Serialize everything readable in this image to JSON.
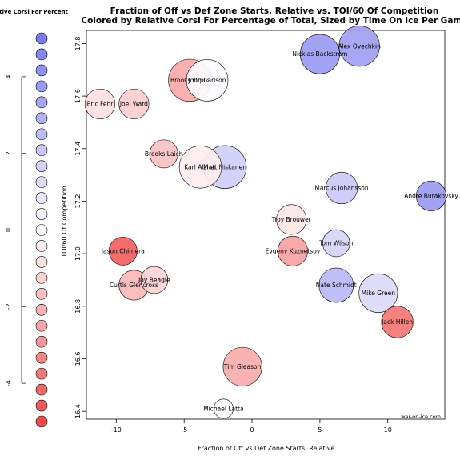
{
  "chart_data": {
    "type": "scatter",
    "title": "Fraction of Off vs Def Zone Starts, Relative vs. TOI/60 Of Competition",
    "subtitle": "Colored by Relative Corsi For Percentage of Total, Sized by Time On Ice Per Game",
    "xlabel": "Fraction of Off vs Def Zone Starts, Relative",
    "ylabel": "TOI/60 Of Competition",
    "xlim": [
      -12.2,
      14.2
    ],
    "ylim": [
      16.37,
      17.85
    ],
    "x_ticks": [
      -10,
      -5,
      0,
      5,
      10
    ],
    "y_ticks": [
      16.4,
      16.6,
      16.8,
      17.0,
      17.2,
      17.4,
      17.6,
      17.8
    ],
    "credit": "war-on-ice.com",
    "legend": {
      "title": "Relative Corsi For Percent",
      "ticks": [
        4,
        2,
        0,
        -2,
        -4
      ],
      "range": [
        5,
        -5
      ],
      "swatch_count": 25
    },
    "points": [
      {
        "name": "Alex Ovechkin",
        "x": 7.9,
        "y": 17.79,
        "size": 1.15,
        "corsi_rel": 3.6
      },
      {
        "name": "Nicklas Backstrom",
        "x": 5.0,
        "y": 17.76,
        "size": 1.12,
        "corsi_rel": 3.8
      },
      {
        "name": "Brooks Orpik",
        "x": -4.6,
        "y": 17.66,
        "size": 1.2,
        "corsi_rel": -2.4
      },
      {
        "name": "John Carlson",
        "x": -3.3,
        "y": 17.66,
        "size": 1.18,
        "corsi_rel": 0.1
      },
      {
        "name": "Eric Fehr",
        "x": -11.2,
        "y": 17.57,
        "size": 0.85,
        "corsi_rel": -0.9
      },
      {
        "name": "Joel Ward",
        "x": -8.7,
        "y": 17.57,
        "size": 0.85,
        "corsi_rel": -1.4
      },
      {
        "name": "Brooks Laich",
        "x": -6.5,
        "y": 17.38,
        "size": 0.8,
        "corsi_rel": -1.7
      },
      {
        "name": "Karl Alzner",
        "x": -3.8,
        "y": 17.33,
        "size": 1.2,
        "corsi_rel": -0.5
      },
      {
        "name": "Matt Niskanen",
        "x": -2.0,
        "y": 17.33,
        "size": 1.22,
        "corsi_rel": 1.8
      },
      {
        "name": "Marcus Johansson",
        "x": 6.6,
        "y": 17.25,
        "size": 0.9,
        "corsi_rel": 2.0
      },
      {
        "name": "Andre Burakovsky",
        "x": 13.2,
        "y": 17.22,
        "size": 0.85,
        "corsi_rel": 3.8
      },
      {
        "name": "Troy Brouwer",
        "x": 2.9,
        "y": 17.13,
        "size": 0.85,
        "corsi_rel": -0.7
      },
      {
        "name": "Tom Wilson",
        "x": 6.2,
        "y": 17.04,
        "size": 0.77,
        "corsi_rel": 1.6
      },
      {
        "name": "Evgeny Kuznetsov",
        "x": 3.0,
        "y": 17.01,
        "size": 0.85,
        "corsi_rel": -2.6
      },
      {
        "name": "Jason Chimera",
        "x": -9.5,
        "y": 17.01,
        "size": 0.8,
        "corsi_rel": -4.4
      },
      {
        "name": "Jay Beagle",
        "x": -7.2,
        "y": 16.9,
        "size": 0.77,
        "corsi_rel": -1.2
      },
      {
        "name": "Curtis Glencross",
        "x": -8.7,
        "y": 16.88,
        "size": 0.85,
        "corsi_rel": -2.0
      },
      {
        "name": "Nate Schmidt",
        "x": 6.2,
        "y": 16.88,
        "size": 0.98,
        "corsi_rel": 2.6
      },
      {
        "name": "Mike Green",
        "x": 9.3,
        "y": 16.85,
        "size": 1.1,
        "corsi_rel": 1.4
      },
      {
        "name": "Jack Hillen",
        "x": 10.7,
        "y": 16.74,
        "size": 0.9,
        "corsi_rel": -3.8
      },
      {
        "name": "Tim Gleason",
        "x": -0.7,
        "y": 16.57,
        "size": 1.1,
        "corsi_rel": -2.3
      },
      {
        "name": "Michael Latta",
        "x": -2.1,
        "y": 16.41,
        "size": 0.55,
        "corsi_rel": 0.1
      }
    ]
  }
}
